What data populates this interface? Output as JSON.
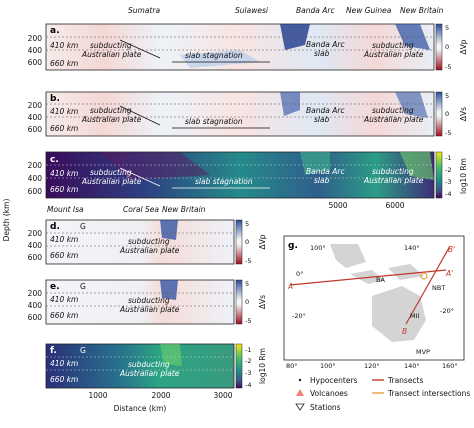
{
  "regions_top": [
    "Sumatra",
    "Sulawesi",
    "Banda Arc",
    "New Guinea",
    "New Britain"
  ],
  "regions_bottom": [
    "Mount Isa",
    "Coral Sea",
    "New Britain"
  ],
  "panels": {
    "a": {
      "letter": "a.",
      "cbar_label": "ΔVp",
      "cbar_ticks": [
        "5",
        "0",
        "-5"
      ]
    },
    "b": {
      "letter": "b.",
      "cbar_label": "ΔVs",
      "cbar_ticks": [
        "5",
        "0",
        "-5"
      ]
    },
    "c": {
      "letter": "c.",
      "cbar_label": "log10 Rm",
      "cbar_ticks": [
        "-1",
        "-2",
        "-3",
        "-4"
      ]
    },
    "d": {
      "letter": "d.",
      "cbar_label": "ΔVp",
      "cbar_ticks": [
        "5",
        "0",
        "-5"
      ]
    },
    "e": {
      "letter": "e.",
      "cbar_label": "ΔVs",
      "cbar_ticks": [
        "5",
        "0",
        "-5"
      ]
    },
    "f": {
      "letter": "f.",
      "cbar_label": "log10 Rm",
      "cbar_ticks": [
        "-1",
        "-2",
        "-3",
        "-4"
      ]
    }
  },
  "annotations": {
    "km410": "410 km",
    "km660": "660 km",
    "subducting": "subducting",
    "australian_plate": "Australian plate",
    "slab_stagnation": "slab stagnation",
    "banda_arc": "Banda Arc",
    "slab": "slab",
    "G": "G"
  },
  "axes": {
    "ylabel": "Depth (km)",
    "xlabel": "Distance (km)",
    "depth_ticks": [
      "200",
      "400",
      "600"
    ],
    "top_distance_ticks": [
      "5000",
      "6000"
    ],
    "bottom_distance_ticks": [
      "1000",
      "2000",
      "3000"
    ]
  },
  "map": {
    "letter": "g.",
    "lon_labels": [
      "80°",
      "100°",
      "120°",
      "140°",
      "160°"
    ],
    "lon_top_labels": [
      "100°",
      "140°"
    ],
    "lat_labels": [
      "0°",
      "-20°"
    ],
    "lat_right_labels": [
      "-20°"
    ],
    "transect_labels": [
      "A",
      "A'",
      "B",
      "B'"
    ],
    "place_labels": [
      "BA",
      "NBT",
      "MII",
      "MVP"
    ]
  },
  "legend": {
    "items": [
      "Hypocenters",
      "Volcanoes",
      "Stations",
      "Transects",
      "Transect intersections"
    ],
    "colors": {
      "transects": "#c0392b",
      "intersections": "#e8a040",
      "volcano": "#f08070"
    }
  }
}
